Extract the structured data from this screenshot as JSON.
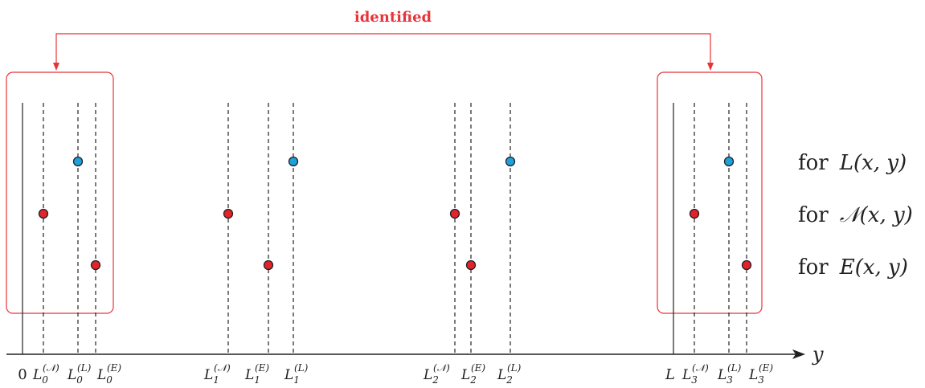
{
  "title": "identified",
  "axis": {
    "label": "y",
    "zero": "0",
    "end": "L"
  },
  "legend": [
    {
      "prefix": "for",
      "func": "L",
      "args": "(x, y)"
    },
    {
      "prefix": "for",
      "func": "𝒩",
      "args": "(x, y)"
    },
    {
      "prefix": "for",
      "func": "E",
      "args": "(x, y)"
    }
  ],
  "tick_labels": [
    {
      "base": "L",
      "sub": "0",
      "sup": "(𝒩)"
    },
    {
      "base": "L",
      "sub": "0",
      "sup": "(L)"
    },
    {
      "base": "L",
      "sub": "0",
      "sup": "(E)"
    },
    {
      "base": "L",
      "sub": "1",
      "sup": "(𝒩)"
    },
    {
      "base": "L",
      "sub": "1",
      "sup": "(E)"
    },
    {
      "base": "L",
      "sub": "1",
      "sup": "(L)"
    },
    {
      "base": "L",
      "sub": "2",
      "sup": "(𝒩)"
    },
    {
      "base": "L",
      "sub": "2",
      "sup": "(E)"
    },
    {
      "base": "L",
      "sub": "2",
      "sup": "(L)"
    },
    {
      "base": "L",
      "sub": "3",
      "sup": "(𝒩)"
    },
    {
      "base": "L",
      "sub": "3",
      "sup": "(L)"
    },
    {
      "base": "L",
      "sub": "3",
      "sup": "(E)"
    }
  ],
  "colors": {
    "identified": "#e8333a",
    "point_blue": "#1ea0dc",
    "point_red": "#e3222a",
    "line": "#222222"
  }
}
